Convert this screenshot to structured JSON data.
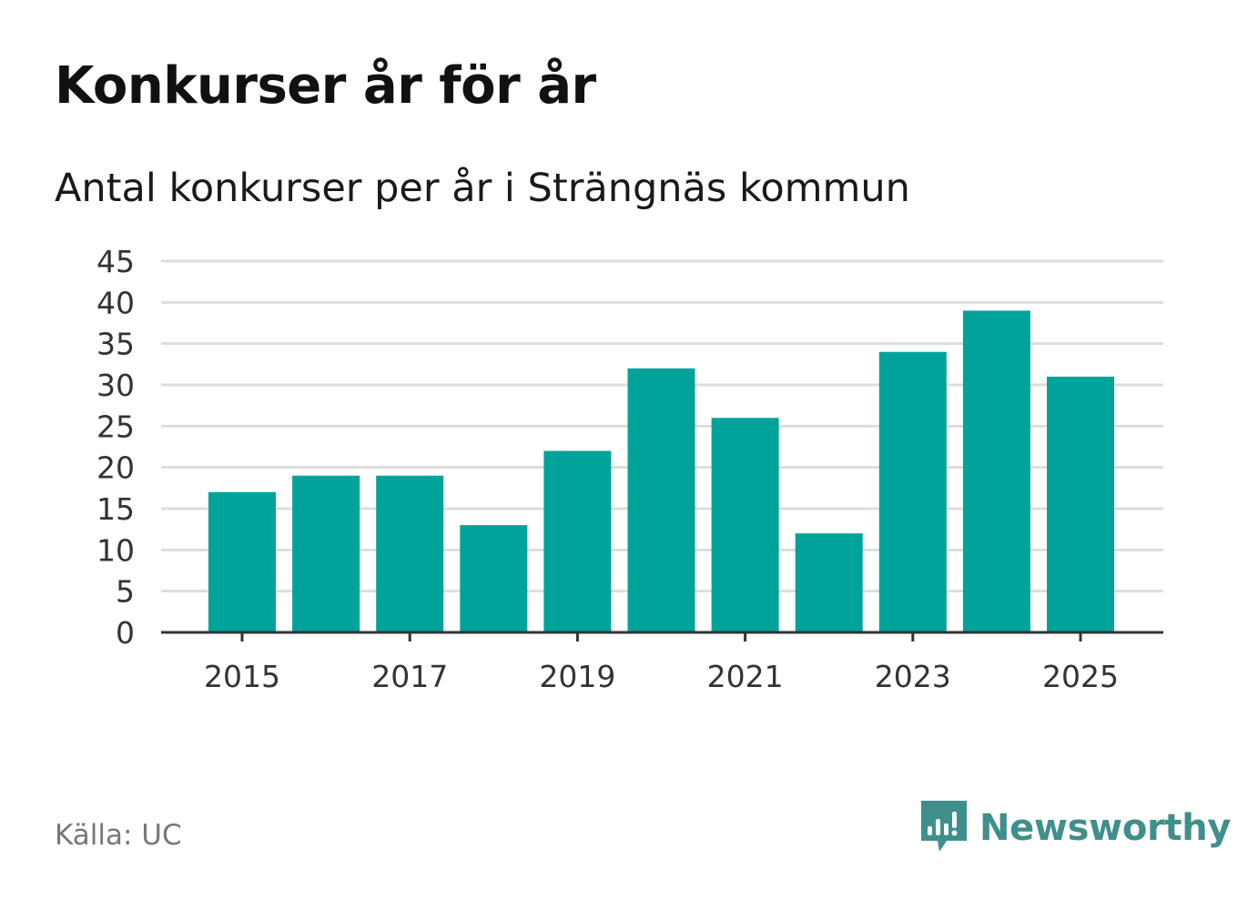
{
  "header": {
    "title": "Konkurser år för år",
    "subtitle": "Antal konkurser per år i Strängnäs kommun"
  },
  "footer": {
    "source": "Källa: UC",
    "brand": "Newsworthy"
  },
  "colors": {
    "bar": "#00a39a",
    "grid": "#dddddd",
    "axis": "#333333",
    "brand": "#3f8f8c"
  },
  "icons": {
    "brand_logo": "newsworthy-logo-icon"
  },
  "chart_data": {
    "type": "bar",
    "title": "Konkurser år för år",
    "subtitle": "Antal konkurser per år i Strängnäs kommun",
    "xlabel": "",
    "ylabel": "",
    "categories": [
      "2015",
      "2016",
      "2017",
      "2018",
      "2019",
      "2020",
      "2021",
      "2022",
      "2023",
      "2024",
      "2025"
    ],
    "x_tick_labels": [
      "2015",
      "2017",
      "2019",
      "2021",
      "2023",
      "2025"
    ],
    "values": [
      17,
      19,
      19,
      13,
      22,
      32,
      26,
      12,
      34,
      39,
      31
    ],
    "ylim": [
      0,
      45
    ],
    "y_ticks": [
      0,
      5,
      10,
      15,
      20,
      25,
      30,
      35,
      40,
      45
    ],
    "grid": true,
    "legend": "none"
  }
}
